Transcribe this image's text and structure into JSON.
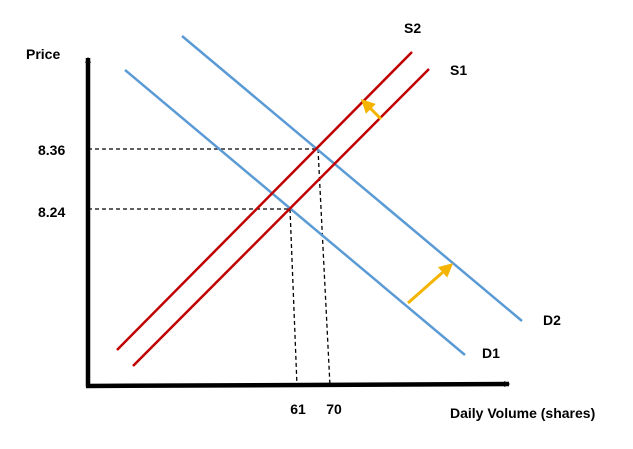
{
  "chart_data": {
    "type": "line",
    "title": "",
    "xlabel": "Daily Volume (shares)",
    "ylabel": "Price",
    "x_ticks": [
      61,
      70
    ],
    "x_tick_labels": [
      "61",
      "70"
    ],
    "y_ticks": [
      8.24,
      8.36
    ],
    "y_tick_labels": [
      "8.24",
      "8.36"
    ],
    "series": [
      {
        "name": "S1",
        "kind": "supply",
        "color": "#c00000"
      },
      {
        "name": "S2",
        "kind": "supply",
        "color": "#c00000"
      },
      {
        "name": "D1",
        "kind": "demand",
        "color": "#5b9bd5"
      },
      {
        "name": "D2",
        "kind": "demand",
        "color": "#5b9bd5"
      }
    ],
    "equilibria": [
      {
        "x": 61,
        "y": 8.24,
        "between": [
          "S1",
          "D1"
        ]
      },
      {
        "x": 70,
        "y": 8.36,
        "between": [
          "S2",
          "D2"
        ]
      }
    ],
    "shift_arrows": [
      {
        "from": "S1",
        "to": "S2",
        "color": "#f4b400"
      },
      {
        "from": "D1",
        "to": "D2",
        "color": "#f4b400"
      }
    ],
    "grid": false,
    "legend": "none"
  }
}
